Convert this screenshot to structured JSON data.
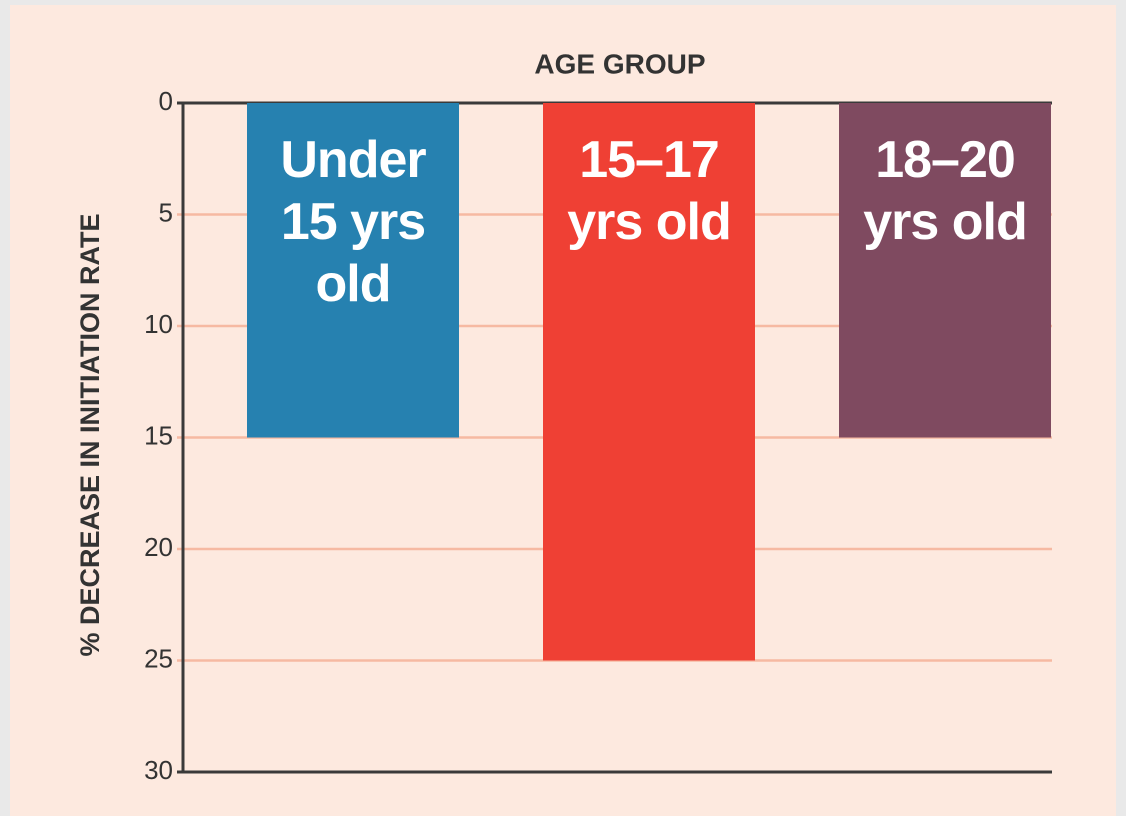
{
  "chart_data": {
    "type": "bar",
    "title": "AGE GROUP",
    "y_label": "% DECREASE IN INITIATION RATE",
    "categories": [
      "Under 15 yrs old",
      "15–17 yrs old",
      "18–20 yrs old"
    ],
    "values": [
      15,
      25,
      15
    ],
    "colors": [
      "#2681b0",
      "#ef4034",
      "#7f4a60"
    ],
    "ylim": [
      0,
      30
    ],
    "y_inverted": true,
    "yticks": [
      0,
      5,
      10,
      15,
      20,
      25,
      30
    ],
    "grid": true
  }
}
